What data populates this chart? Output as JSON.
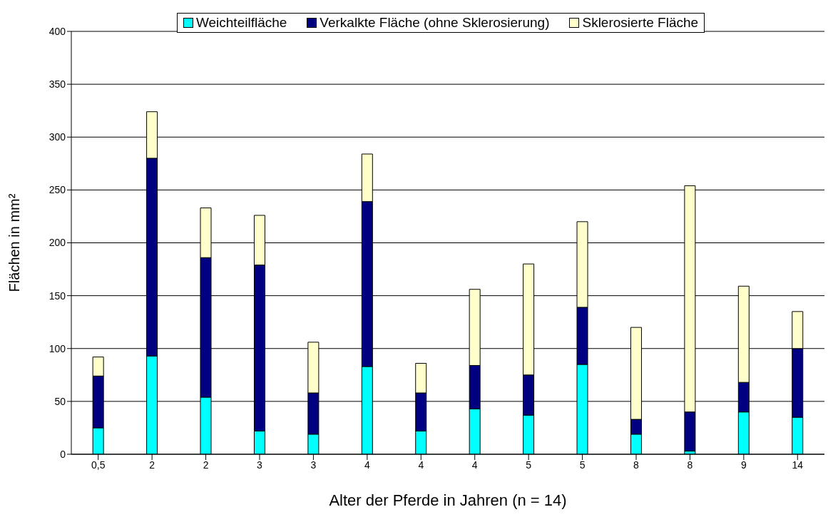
{
  "chart_data": {
    "type": "bar",
    "stacked": true,
    "xlabel": "Alter der Pferde in Jahren (n = 14)",
    "ylabel": "Flächen in mm²",
    "categories": [
      "0,5",
      "2",
      "2",
      "3",
      "3",
      "4",
      "4",
      "4",
      "5",
      "5",
      "8",
      "8",
      "9",
      "14"
    ],
    "series": [
      {
        "name": "Weichteilfläche",
        "color": "#00ffff",
        "values": [
          25,
          93,
          54,
          22,
          19,
          83,
          22,
          43,
          37,
          85,
          19,
          3,
          40,
          35
        ]
      },
      {
        "name": "Verkalkte Fläche (ohne Sklerosierung)",
        "color": "#000080",
        "values": [
          49,
          187,
          132,
          157,
          39,
          156,
          36,
          41,
          38,
          54,
          14,
          37,
          28,
          65
        ]
      },
      {
        "name": "Sklerosierte Fläche",
        "color": "#ffffcc",
        "values": [
          18,
          44,
          47,
          47,
          48,
          45,
          28,
          72,
          105,
          81,
          87,
          214,
          91,
          35
        ]
      }
    ],
    "ylim": [
      0,
      400
    ],
    "yticks": [
      0,
      50,
      100,
      150,
      200,
      250,
      300,
      350,
      400
    ],
    "grid": "y",
    "legend": "top"
  }
}
